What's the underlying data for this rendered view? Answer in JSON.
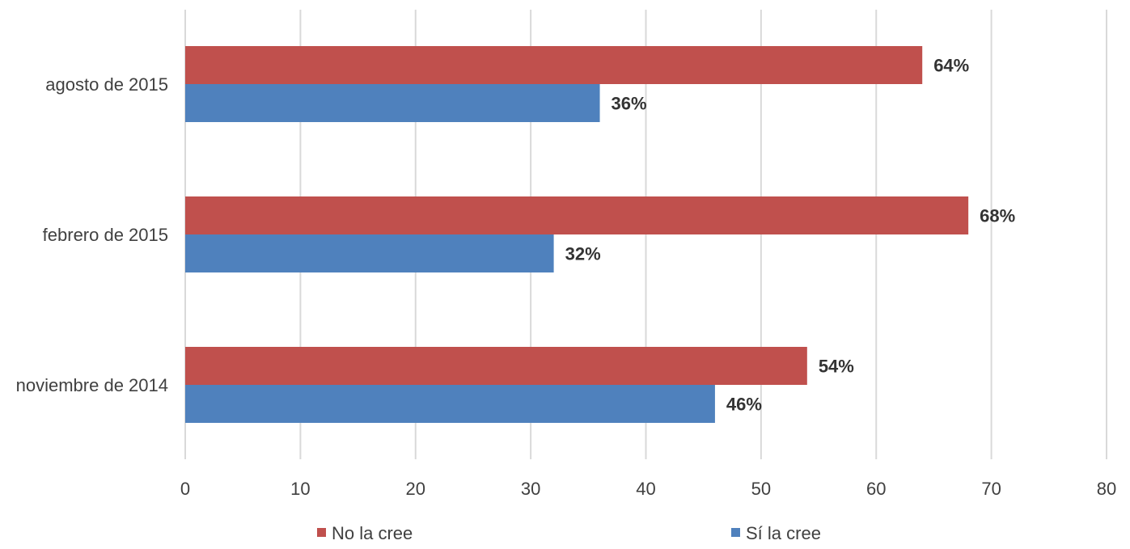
{
  "chart_data": {
    "type": "bar",
    "orientation": "horizontal",
    "categories": [
      "agosto de 2015",
      "febrero de 2015",
      "noviembre de 2014"
    ],
    "series": [
      {
        "name": "No la cree",
        "values": [
          64,
          68,
          54
        ],
        "labels": [
          "64%",
          "68%",
          "54%"
        ],
        "color": "#c0504d"
      },
      {
        "name": "Sí la cree",
        "values": [
          36,
          32,
          46
        ],
        "labels": [
          "36%",
          "32%",
          "46%"
        ],
        "color": "#4f81bd"
      }
    ],
    "xlim": [
      0,
      80
    ],
    "xticks": [
      0,
      10,
      20,
      30,
      40,
      50,
      60,
      70,
      80
    ],
    "grid": "vertical",
    "legend_position": "bottom"
  }
}
